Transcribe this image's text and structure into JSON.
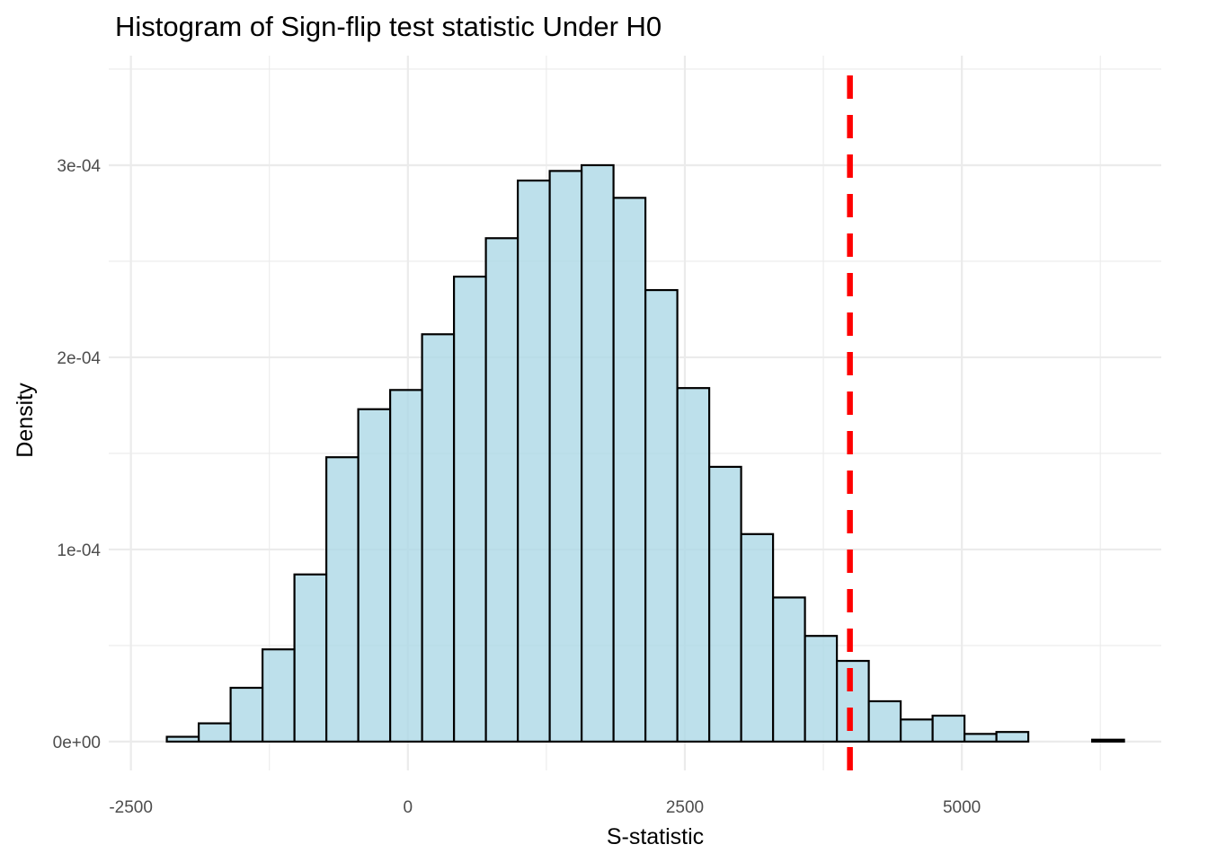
{
  "chart_data": {
    "type": "histogram",
    "title": "Histogram of Sign-flip test statistic Under H0",
    "xlabel": "S-statistic",
    "ylabel": "Density",
    "xlim": [
      -2700,
      6800
    ],
    "ylim": [
      -1.5e-05,
      0.000357
    ],
    "x_major_ticks": [
      -2500,
      0,
      2500,
      5000
    ],
    "x_minor_ticks": [
      -1250,
      1250,
      3750,
      6250
    ],
    "x_tick_labels": [
      "-2500",
      "0",
      "2500",
      "5000"
    ],
    "y_major_ticks": [
      0,
      0.0001,
      0.0002,
      0.0003
    ],
    "y_minor_ticks": [
      5e-05,
      0.00015,
      0.00025,
      0.00035
    ],
    "y_tick_labels": [
      "0e+00",
      "1e-04",
      "2e-04",
      "3e-04"
    ],
    "bin_width": 288,
    "bins": [
      {
        "start": -2176,
        "end": -1888,
        "density": 2.5e-06
      },
      {
        "start": -1888,
        "end": -1600,
        "density": 9.5e-06
      },
      {
        "start": -1600,
        "end": -1312,
        "density": 2.8e-05
      },
      {
        "start": -1312,
        "end": -1024,
        "density": 4.8e-05
      },
      {
        "start": -1024,
        "end": -736,
        "density": 8.7e-05
      },
      {
        "start": -736,
        "end": -448,
        "density": 0.000148
      },
      {
        "start": -448,
        "end": -160,
        "density": 0.000173
      },
      {
        "start": -160,
        "end": 128,
        "density": 0.000183
      },
      {
        "start": 128,
        "end": 416,
        "density": 0.000212
      },
      {
        "start": 416,
        "end": 704,
        "density": 0.000242
      },
      {
        "start": 704,
        "end": 992,
        "density": 0.000262
      },
      {
        "start": 992,
        "end": 1280,
        "density": 0.000292
      },
      {
        "start": 1280,
        "end": 1568,
        "density": 0.000297
      },
      {
        "start": 1568,
        "end": 1856,
        "density": 0.0003
      },
      {
        "start": 1856,
        "end": 2144,
        "density": 0.000283
      },
      {
        "start": 2144,
        "end": 2432,
        "density": 0.000235
      },
      {
        "start": 2432,
        "end": 2720,
        "density": 0.000184
      },
      {
        "start": 2720,
        "end": 3008,
        "density": 0.000143
      },
      {
        "start": 3008,
        "end": 3296,
        "density": 0.000108
      },
      {
        "start": 3296,
        "end": 3584,
        "density": 7.5e-05
      },
      {
        "start": 3584,
        "end": 3872,
        "density": 5.5e-05
      },
      {
        "start": 3872,
        "end": 4160,
        "density": 4.2e-05
      },
      {
        "start": 4160,
        "end": 4448,
        "density": 2.1e-05
      },
      {
        "start": 4448,
        "end": 4736,
        "density": 1.15e-05
      },
      {
        "start": 4736,
        "end": 5024,
        "density": 1.35e-05
      },
      {
        "start": 5024,
        "end": 5312,
        "density": 4e-06
      },
      {
        "start": 5312,
        "end": 5600,
        "density": 5e-06
      },
      {
        "start": 5600,
        "end": 5888,
        "density": 0
      },
      {
        "start": 5888,
        "end": 6176,
        "density": 0
      },
      {
        "start": 6176,
        "end": 6464,
        "density": 1e-06
      }
    ],
    "observed_line": {
      "x": 3990,
      "color": "#ff0000",
      "style": "dashed"
    },
    "bar_fill": "#add8e6",
    "bar_fill_opacity": 0.8,
    "bar_outline": "#000000",
    "grid": true,
    "legend": "none"
  }
}
